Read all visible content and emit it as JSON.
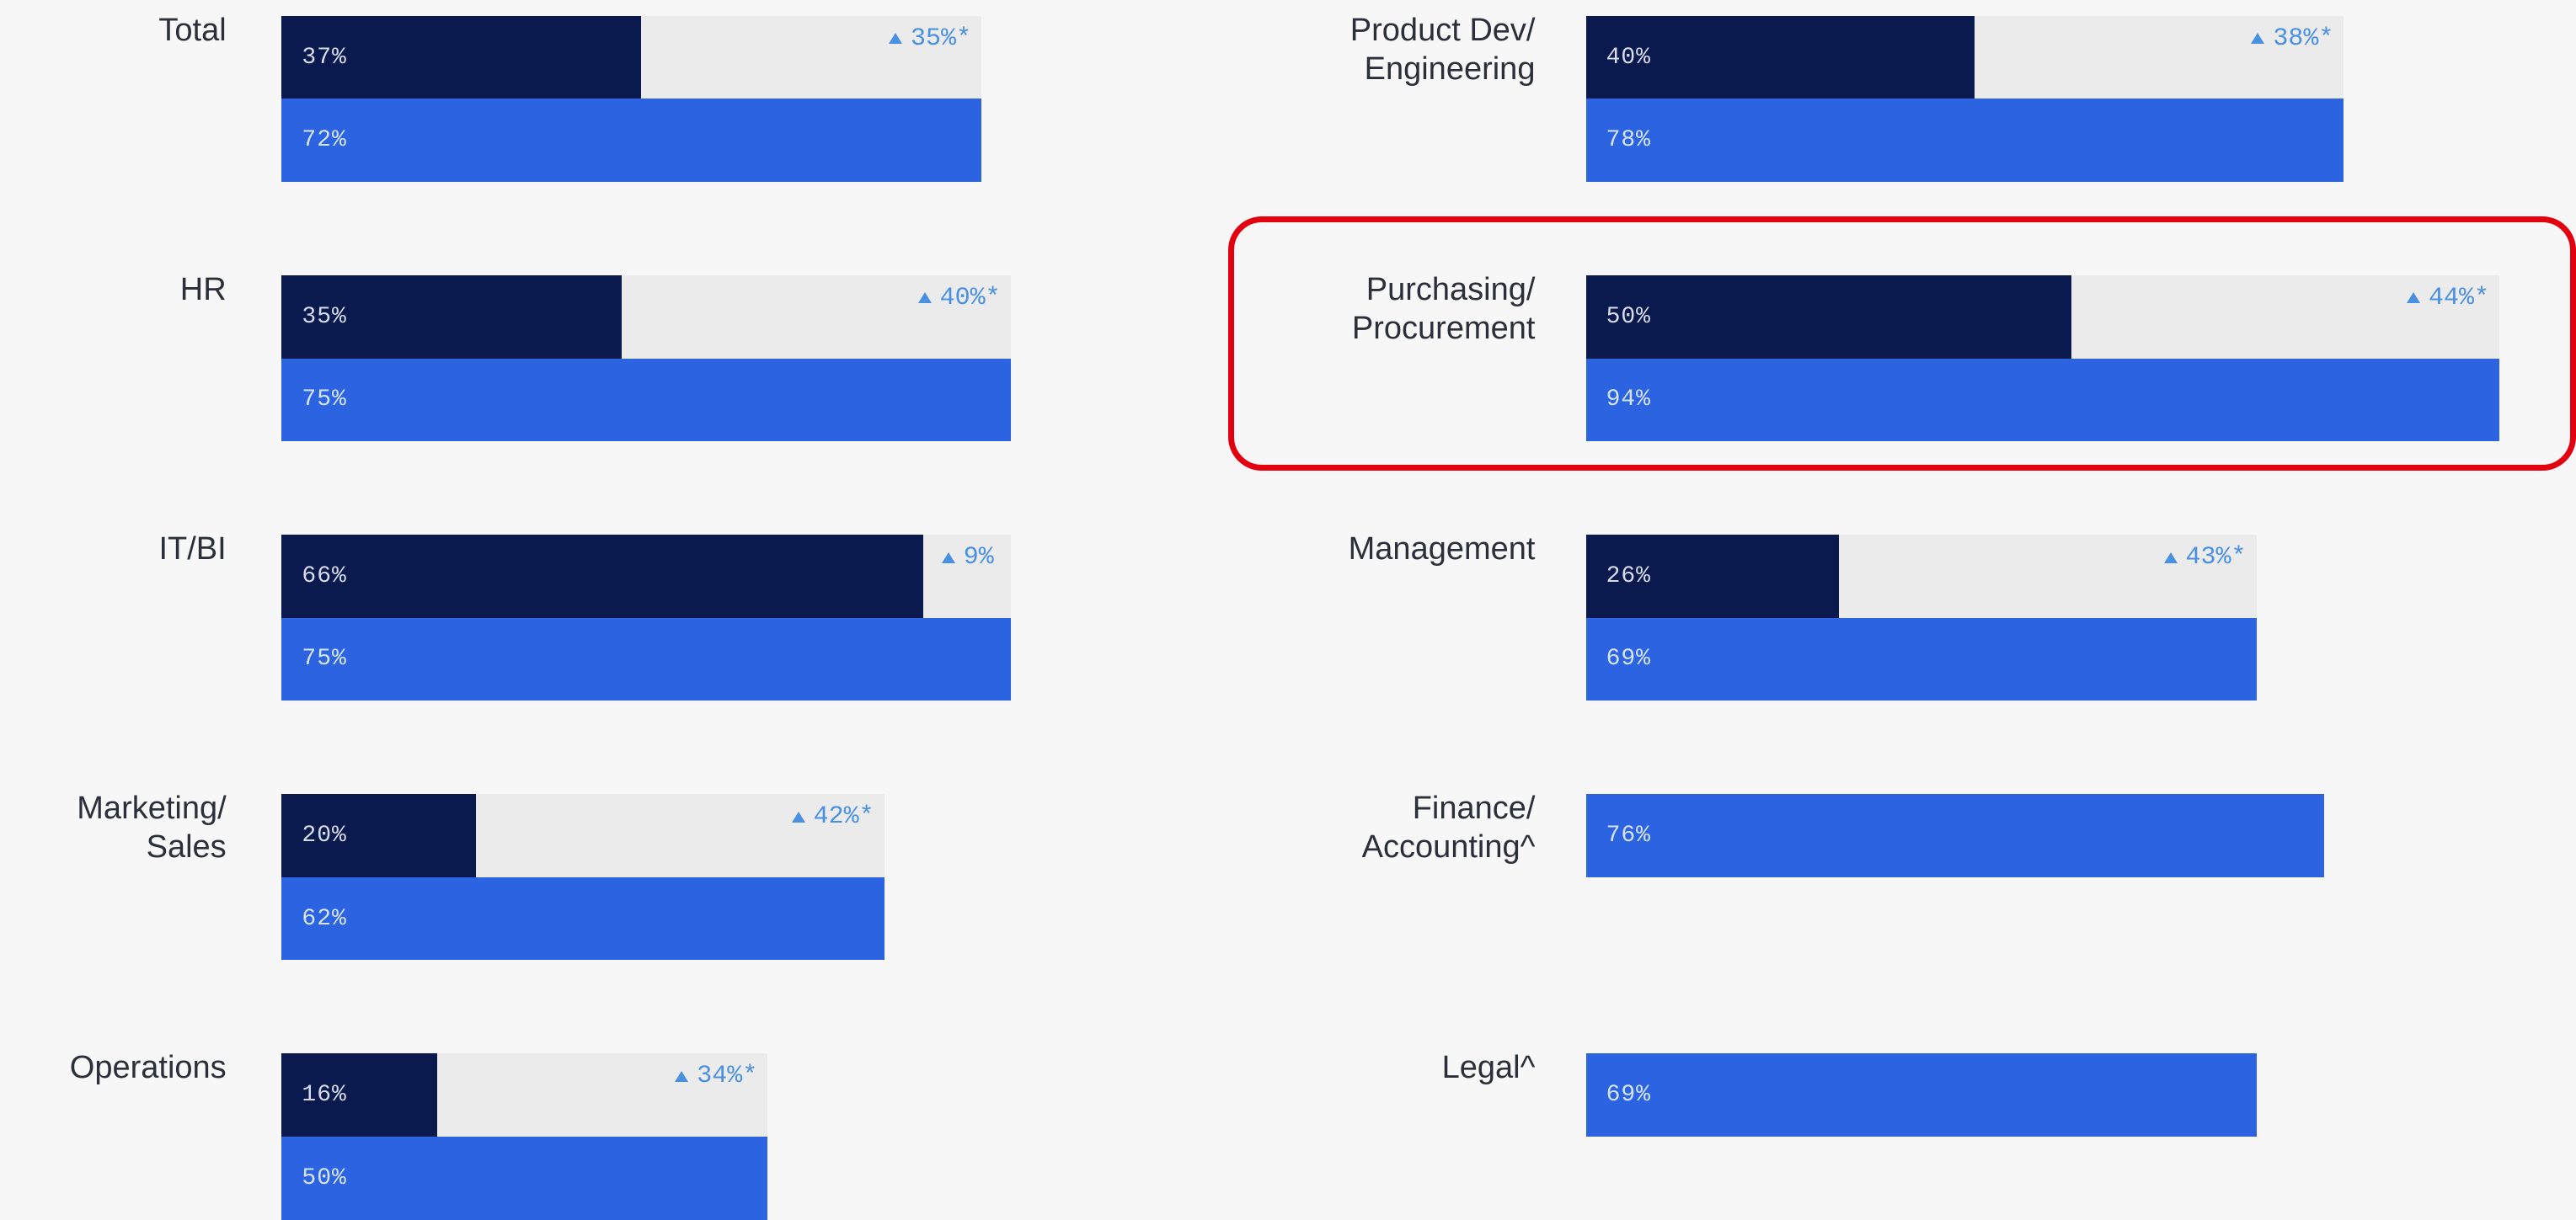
{
  "chart_data": {
    "type": "bar",
    "orientation": "horizontal",
    "categories": [
      "Total",
      "HR",
      "IT/BI",
      "Marketing/\nSales",
      "Operations",
      "Product Dev/\nEngineering",
      "Purchasing/\nProcurement",
      "Management",
      "Finance/\nAccounting^",
      "Legal^"
    ],
    "xlim": [
      0,
      100
    ],
    "series": [
      {
        "color": "#0b1a4e",
        "values": [
          37,
          35,
          66,
          20,
          16,
          40,
          50,
          26,
          null,
          null
        ],
        "value_labels": [
          "37%",
          "35%",
          "66%",
          "20%",
          "16%",
          "40%",
          "50%",
          "26%",
          null,
          null
        ]
      },
      {
        "color": "#2b63e0",
        "values": [
          72,
          75,
          75,
          62,
          50,
          78,
          94,
          69,
          76,
          69
        ],
        "value_labels": [
          "72%",
          "75%",
          "75%",
          "62%",
          "50%",
          "78%",
          "94%",
          "69%",
          "76%",
          "69%"
        ]
      }
    ],
    "changes": {
      "color": "#4a90e2",
      "values": [
        35,
        40,
        9,
        42,
        34,
        38,
        44,
        43,
        null,
        null
      ],
      "value_labels": [
        "35%*",
        "40%*",
        "9%",
        "42%*",
        "34%*",
        "38%*",
        "44%*",
        "43%*",
        null,
        null
      ]
    },
    "track_color": "#ebebec"
  }
}
